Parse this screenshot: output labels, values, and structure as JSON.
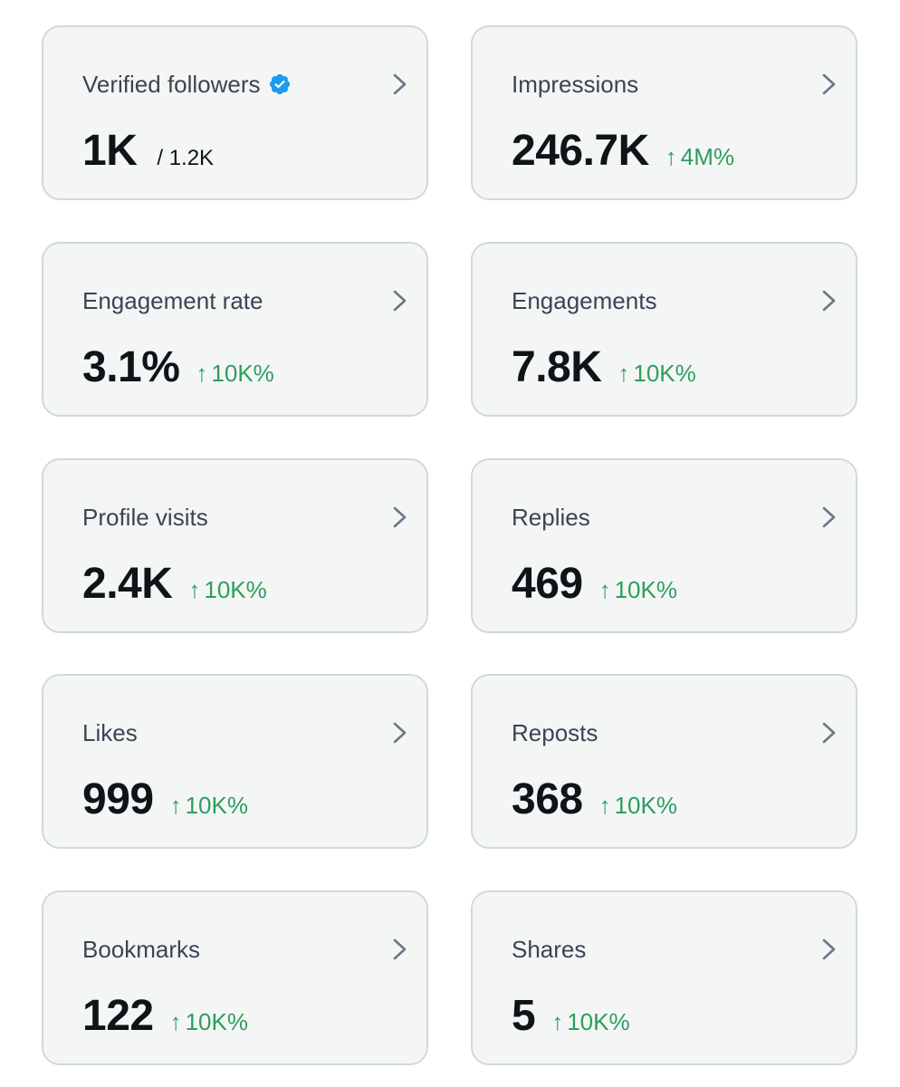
{
  "accent_color": "#1d9bf0",
  "positive_color": "#2e9e5c",
  "cards": [
    {
      "title": "Verified followers",
      "value": "1K",
      "total": "/ 1.2K",
      "icon": "verified-badge-icon"
    },
    {
      "title": "Impressions",
      "value": "246.7K",
      "change": "4M%",
      "change_arrow": "↑"
    },
    {
      "title": "Engagement rate",
      "value": "3.1%",
      "change": "10K%",
      "change_arrow": "↑"
    },
    {
      "title": "Engagements",
      "value": "7.8K",
      "change": "10K%",
      "change_arrow": "↑"
    },
    {
      "title": "Profile visits",
      "value": "2.4K",
      "change": "10K%",
      "change_arrow": "↑"
    },
    {
      "title": "Replies",
      "value": "469",
      "change": "10K%",
      "change_arrow": "↑"
    },
    {
      "title": "Likes",
      "value": "999",
      "change": "10K%",
      "change_arrow": "↑"
    },
    {
      "title": "Reposts",
      "value": "368",
      "change": "10K%",
      "change_arrow": "↑"
    },
    {
      "title": "Bookmarks",
      "value": "122",
      "change": "10K%",
      "change_arrow": "↑"
    },
    {
      "title": "Shares",
      "value": "5",
      "change": "10K%",
      "change_arrow": "↑"
    }
  ]
}
